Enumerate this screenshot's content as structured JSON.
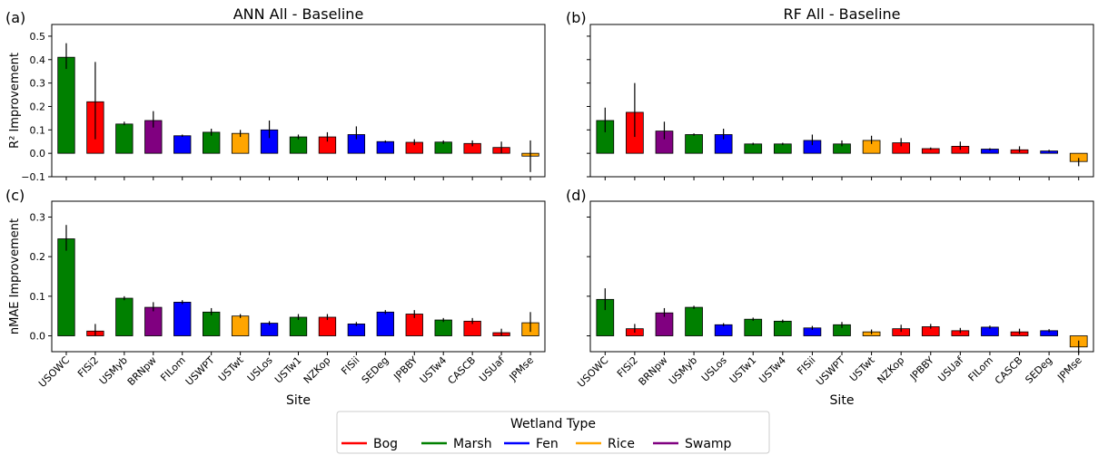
{
  "chart_data": [
    {
      "type": "bar",
      "panel_letter": "(a)",
      "title": "ANN All - Baseline",
      "ylabel": "R² Improvement",
      "xlabel": "",
      "ylim": [
        -0.1,
        0.55
      ],
      "yticks": [
        -0.1,
        0.0,
        0.1,
        0.2,
        0.3,
        0.4,
        0.5
      ],
      "ytick_labels": [
        "−0.1",
        "0.0",
        "0.1",
        "0.2",
        "0.3",
        "0.4",
        "0.5"
      ],
      "categories": [
        "USOWC",
        "FISi2",
        "USMyb",
        "BRNpw",
        "FILom",
        "USWPT",
        "USTwt",
        "USLos",
        "USTw1",
        "NZKop",
        "FISii",
        "SEDeg",
        "JPBBY",
        "USTw4",
        "CASCB",
        "USUaf",
        "JPMse"
      ],
      "wetland_types": [
        "Marsh",
        "Bog",
        "Marsh",
        "Swamp",
        "Fen",
        "Marsh",
        "Rice",
        "Fen",
        "Marsh",
        "Bog",
        "Fen",
        "Fen",
        "Bog",
        "Marsh",
        "Bog",
        "Bog",
        "Rice"
      ],
      "values": [
        0.41,
        0.22,
        0.125,
        0.14,
        0.075,
        0.09,
        0.085,
        0.1,
        0.07,
        0.07,
        0.08,
        0.05,
        0.047,
        0.048,
        0.042,
        0.025,
        -0.012
      ],
      "err_low": [
        0.36,
        0.06,
        0.12,
        0.11,
        0.07,
        0.075,
        0.07,
        0.065,
        0.06,
        0.05,
        0.06,
        0.045,
        0.035,
        0.04,
        0.03,
        0.0,
        -0.08
      ],
      "err_high": [
        0.47,
        0.39,
        0.135,
        0.18,
        0.08,
        0.105,
        0.1,
        0.14,
        0.08,
        0.09,
        0.115,
        0.055,
        0.06,
        0.055,
        0.055,
        0.05,
        0.055
      ],
      "show_xticklabels": false
    },
    {
      "type": "bar",
      "panel_letter": "(b)",
      "title": "RF All - Baseline",
      "ylabel": "",
      "xlabel": "",
      "ylim": [
        -0.1,
        0.55
      ],
      "yticks": [
        -0.1,
        0.0,
        0.1,
        0.2,
        0.3,
        0.4,
        0.5
      ],
      "ytick_labels": [],
      "categories": [
        "USOWC",
        "FISi2",
        "BRNpw",
        "USMyb",
        "USLos",
        "USTw1",
        "USTw4",
        "FISii",
        "USWPT",
        "USTwt",
        "NZKop",
        "JPBBY",
        "USUaf",
        "FILom",
        "CASCB",
        "SEDeg",
        "JPMse"
      ],
      "wetland_types": [
        "Marsh",
        "Bog",
        "Swamp",
        "Marsh",
        "Fen",
        "Marsh",
        "Marsh",
        "Fen",
        "Marsh",
        "Rice",
        "Bog",
        "Bog",
        "Bog",
        "Fen",
        "Bog",
        "Fen",
        "Rice"
      ],
      "values": [
        0.14,
        0.175,
        0.095,
        0.08,
        0.08,
        0.04,
        0.04,
        0.055,
        0.04,
        0.055,
        0.045,
        0.02,
        0.03,
        0.018,
        0.015,
        0.01,
        -0.035
      ],
      "err_low": [
        0.09,
        0.07,
        0.06,
        0.075,
        0.06,
        0.035,
        0.035,
        0.035,
        0.03,
        0.04,
        0.03,
        0.015,
        0.015,
        0.012,
        0.005,
        0.005,
        -0.055
      ],
      "err_high": [
        0.195,
        0.3,
        0.135,
        0.085,
        0.105,
        0.045,
        0.045,
        0.08,
        0.055,
        0.075,
        0.065,
        0.025,
        0.05,
        0.022,
        0.03,
        0.015,
        -0.02
      ],
      "show_xticklabels": false
    },
    {
      "type": "bar",
      "panel_letter": "(c)",
      "title": "",
      "ylabel": "nMAE Improvement",
      "xlabel": "Site",
      "ylim": [
        -0.04,
        0.34
      ],
      "yticks": [
        0.0,
        0.1,
        0.2,
        0.3
      ],
      "ytick_labels": [
        "0.0",
        "0.1",
        "0.2",
        "0.3"
      ],
      "categories": [
        "USOWC",
        "FISi2",
        "USMyb",
        "BRNpw",
        "FILom",
        "USWPT",
        "USTwt",
        "USLos",
        "USTw1",
        "NZKop",
        "FISii",
        "SEDeg",
        "JPBBY",
        "USTw4",
        "CASCB",
        "USUaf",
        "JPMse"
      ],
      "wetland_types": [
        "Marsh",
        "Bog",
        "Marsh",
        "Swamp",
        "Fen",
        "Marsh",
        "Rice",
        "Fen",
        "Marsh",
        "Bog",
        "Fen",
        "Fen",
        "Bog",
        "Marsh",
        "Bog",
        "Bog",
        "Rice"
      ],
      "values": [
        0.245,
        0.012,
        0.095,
        0.072,
        0.085,
        0.06,
        0.05,
        0.032,
        0.047,
        0.047,
        0.03,
        0.06,
        0.055,
        0.04,
        0.037,
        0.008,
        0.033
      ],
      "err_low": [
        0.215,
        0.0,
        0.09,
        0.062,
        0.08,
        0.052,
        0.045,
        0.027,
        0.04,
        0.04,
        0.025,
        0.055,
        0.045,
        0.035,
        0.03,
        0.0,
        0.01
      ],
      "err_high": [
        0.28,
        0.03,
        0.1,
        0.085,
        0.09,
        0.07,
        0.055,
        0.037,
        0.055,
        0.055,
        0.035,
        0.065,
        0.065,
        0.045,
        0.045,
        0.018,
        0.06
      ],
      "show_xticklabels": true
    },
    {
      "type": "bar",
      "panel_letter": "(d)",
      "title": "",
      "ylabel": "",
      "xlabel": "Site",
      "ylim": [
        -0.04,
        0.34
      ],
      "yticks": [
        0.0,
        0.1,
        0.2,
        0.3
      ],
      "ytick_labels": [],
      "categories": [
        "USOWC",
        "FISi2",
        "BRNpw",
        "USMyb",
        "USLos",
        "USTw1",
        "USTw4",
        "FISii",
        "USWPT",
        "USTwt",
        "NZKop",
        "JPBBY",
        "USUaf",
        "FILom",
        "CASCB",
        "SEDeg",
        "JPMse"
      ],
      "wetland_types": [
        "Marsh",
        "Bog",
        "Swamp",
        "Marsh",
        "Fen",
        "Marsh",
        "Marsh",
        "Fen",
        "Marsh",
        "Rice",
        "Bog",
        "Bog",
        "Bog",
        "Fen",
        "Bog",
        "Fen",
        "Rice"
      ],
      "values": [
        0.092,
        0.018,
        0.058,
        0.072,
        0.028,
        0.042,
        0.037,
        0.02,
        0.028,
        0.01,
        0.018,
        0.023,
        0.013,
        0.022,
        0.01,
        0.013,
        -0.028
      ],
      "err_low": [
        0.065,
        0.008,
        0.048,
        0.068,
        0.024,
        0.038,
        0.033,
        0.015,
        0.02,
        0.004,
        0.01,
        0.018,
        0.007,
        0.018,
        0.004,
        0.009,
        -0.045
      ],
      "err_high": [
        0.12,
        0.03,
        0.07,
        0.076,
        0.032,
        0.046,
        0.041,
        0.025,
        0.035,
        0.016,
        0.028,
        0.03,
        0.02,
        0.026,
        0.018,
        0.017,
        -0.012
      ],
      "show_xticklabels": true
    }
  ],
  "legend": {
    "title": "Wetland Type",
    "placement": "bottom-center",
    "entries": [
      {
        "label": "Bog",
        "color": "#ff0000"
      },
      {
        "label": "Marsh",
        "color": "#008000"
      },
      {
        "label": "Fen",
        "color": "#0000ff"
      },
      {
        "label": "Rice",
        "color": "#ffa500"
      },
      {
        "label": "Swamp",
        "color": "#800080"
      }
    ]
  },
  "colors": {
    "Bog": "#ff0000",
    "Marsh": "#008000",
    "Fen": "#0000ff",
    "Rice": "#ffa500",
    "Swamp": "#800080"
  }
}
